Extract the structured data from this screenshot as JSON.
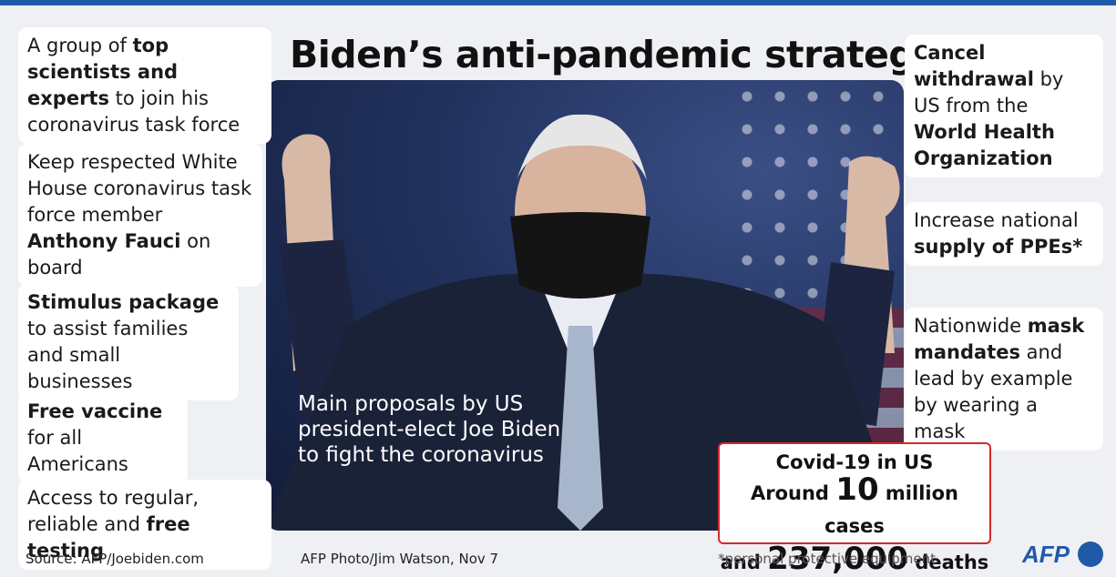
{
  "title": "Biden’s anti-pandemic strategy",
  "left_panels": [
    {
      "parts": [
        {
          "t": "A group of ",
          "b": false
        },
        {
          "t": "top scientists and experts",
          "b": true
        },
        {
          "t": " to join his coronavirus task force",
          "b": false
        }
      ]
    },
    {
      "parts": [
        {
          "t": "Keep respected White House coronavirus task force member ",
          "b": false
        },
        {
          "t": "Anthony Fauci",
          "b": true
        },
        {
          "t": " on board",
          "b": false
        }
      ]
    },
    {
      "parts": [
        {
          "t": "Stimulus package",
          "b": true
        },
        {
          "t": " to assist families and small businesses",
          "b": false
        }
      ]
    },
    {
      "parts": [
        {
          "t": "Free vaccine",
          "b": true
        },
        {
          "t": " for all Americans",
          "b": false
        }
      ]
    },
    {
      "parts": [
        {
          "t": "Access to regular, reliable and ",
          "b": false
        },
        {
          "t": "free testing",
          "b": true
        }
      ]
    }
  ],
  "right_panels": [
    {
      "parts": [
        {
          "t": "Cancel withdrawal",
          "b": true
        },
        {
          "t": " by US from the ",
          "b": false
        },
        {
          "t": "World Health Organization",
          "b": true
        }
      ]
    },
    {
      "parts": [
        {
          "t": "Increase national ",
          "b": false
        },
        {
          "t": "supply of PPEs*",
          "b": true
        }
      ]
    },
    {
      "parts": [
        {
          "t": "Nationwide ",
          "b": false
        },
        {
          "t": "mask mandates",
          "b": true
        },
        {
          "t": " and lead by example by wearing a mask",
          "b": false
        }
      ]
    }
  ],
  "caption": "Main proposals by US president-elect Joe Biden to fight the coronavirus",
  "covid": {
    "heading": "Covid-19 in US",
    "line2_prefix": "Around ",
    "line2_number": "10",
    "line2_suffix": " million cases",
    "line3_prefix": "and ",
    "line3_number": "237,000",
    "line3_suffix": " deaths",
    "border_color": "#d22a2a"
  },
  "footer": {
    "source": "Source: AFP/Joebiden.com",
    "photo_credit": "AFP Photo/Jim Watson, Nov 7",
    "footnote": "*personal protective equipment"
  },
  "logo": {
    "text": "AFP",
    "color": "#1f5aa8"
  },
  "accent_color": "#1f5aa8"
}
